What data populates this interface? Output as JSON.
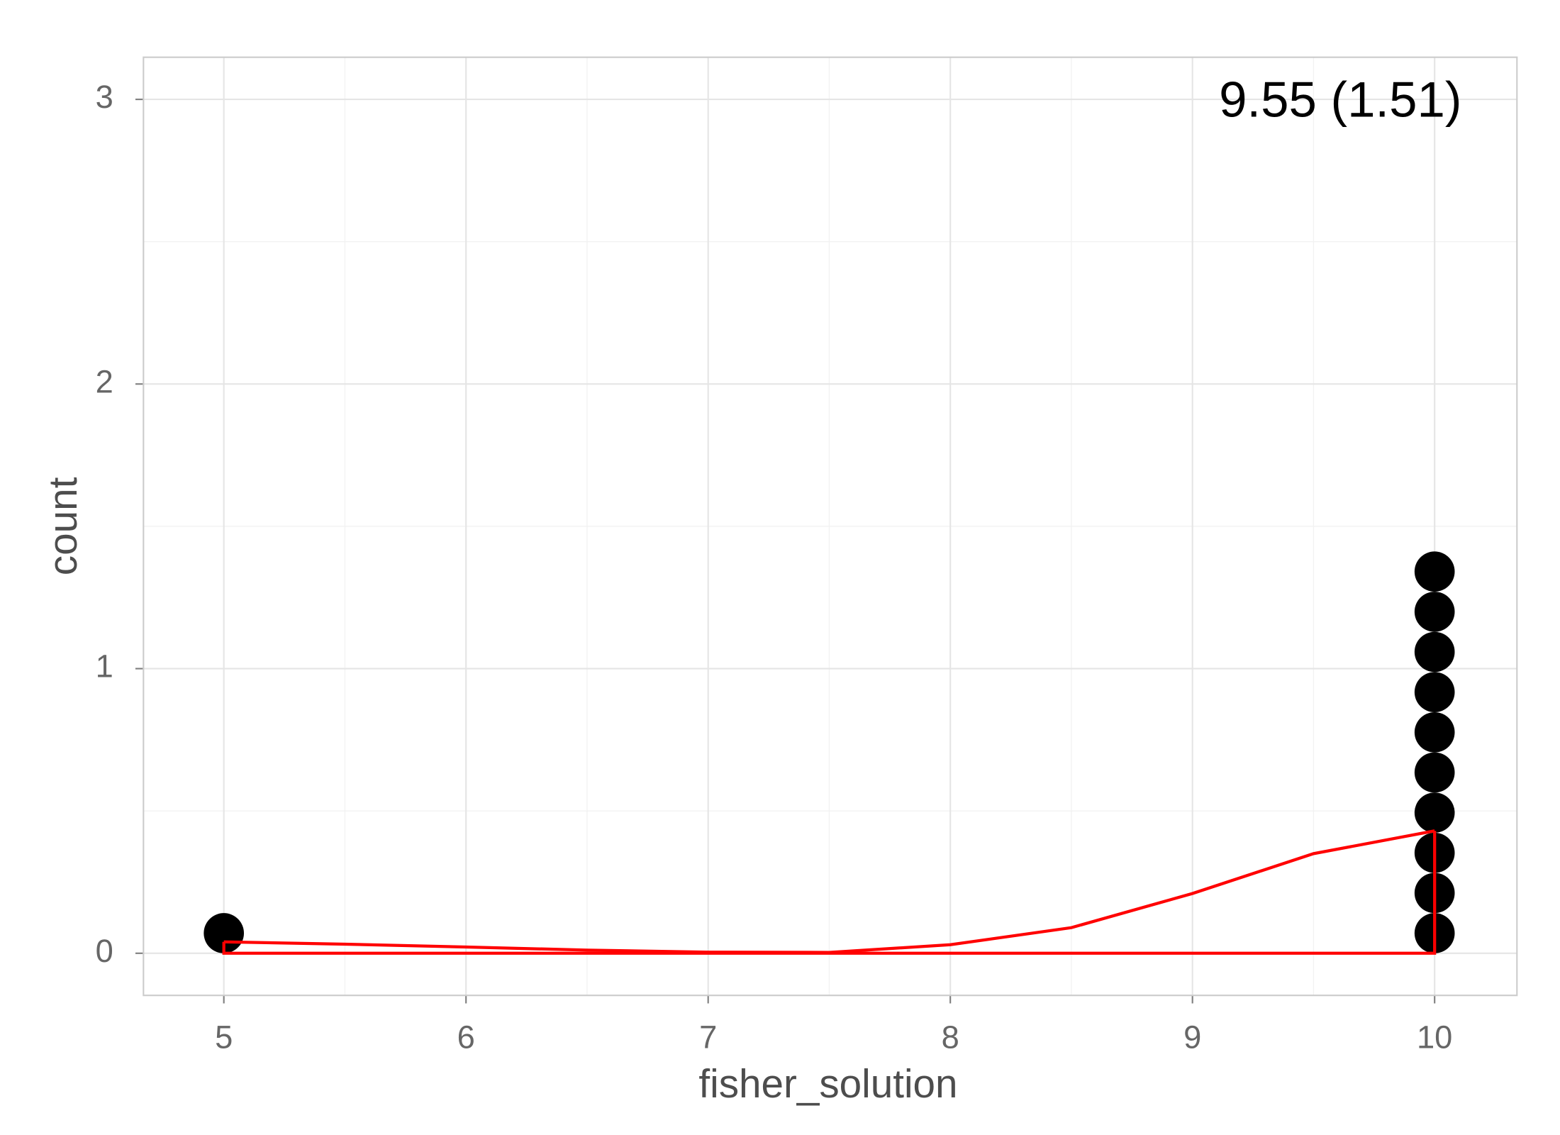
{
  "chart_data": {
    "type": "dotplot",
    "annotation": "9.55 (1.51)",
    "x_label": "fisher_solution",
    "y_label": "count",
    "xlim": [
      4.668,
      10.34
    ],
    "ylim": [
      -0.148,
      3.148
    ],
    "xticks": [
      5,
      6,
      7,
      8,
      9,
      10
    ],
    "yticks": [
      0,
      1,
      2,
      3
    ],
    "grid": true,
    "minor_grid": true,
    "dots": {
      "x": [
        5,
        10
      ],
      "counts": [
        1,
        10
      ],
      "color": "#000000"
    },
    "density": {
      "color": "#ff0000",
      "x": [
        5,
        5.5,
        6,
        6.5,
        7,
        7.5,
        8,
        8.5,
        9,
        9.5,
        10
      ],
      "values": [
        0.04,
        0.032,
        0.022,
        0.011,
        0.004,
        0.003,
        0.03,
        0.09,
        0.21,
        0.35,
        0.43
      ]
    }
  }
}
